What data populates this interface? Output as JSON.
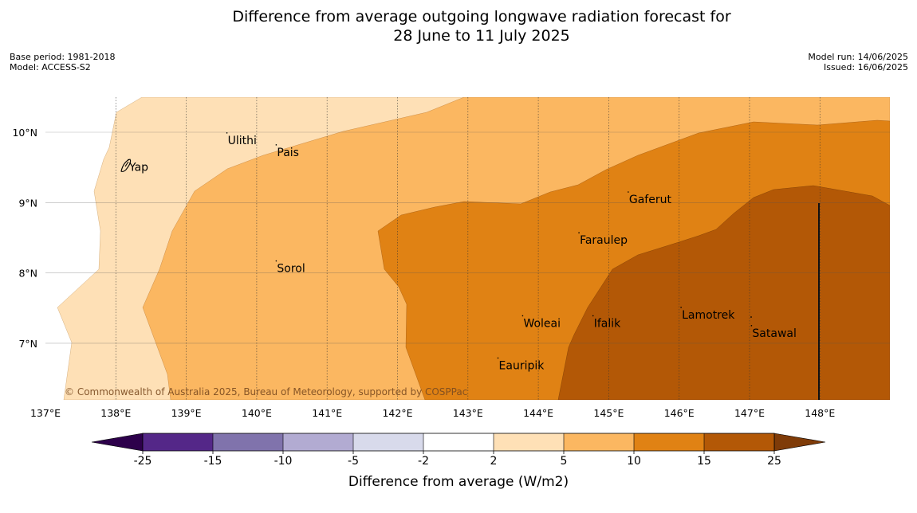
{
  "title_line1": "Difference from average outgoing longwave radiation forecast for",
  "title_line2": "28 June to 11 July 2025",
  "base_period": "Base period: 1981-2018",
  "model": "Model: ACCESS-S2",
  "model_run": "Model run: 14/06/2025",
  "issued": "Issued: 16/06/2025",
  "copyright": "© Commonwealth of Australia 2025, Bureau of Meteorology, supported by COSPPac",
  "lat_ticks": [
    {
      "lat": 10,
      "label": "10°N"
    },
    {
      "lat": 9,
      "label": "9°N"
    },
    {
      "lat": 8,
      "label": "8°N"
    },
    {
      "lat": 7,
      "label": "7°N"
    }
  ],
  "lon_ticks": [
    {
      "lon": 137,
      "label": "137°E"
    },
    {
      "lon": 138,
      "label": "138°E"
    },
    {
      "lon": 139,
      "label": "139°E"
    },
    {
      "lon": 140,
      "label": "140°E"
    },
    {
      "lon": 141,
      "label": "141°E"
    },
    {
      "lon": 142,
      "label": "142°E"
    },
    {
      "lon": 143,
      "label": "143°E"
    },
    {
      "lon": 144,
      "label": "144°E"
    },
    {
      "lon": 145,
      "label": "145°E"
    },
    {
      "lon": 146,
      "label": "146°E"
    },
    {
      "lon": 147,
      "label": "147°E"
    },
    {
      "lon": 148,
      "label": "148°E"
    }
  ],
  "places": [
    {
      "name": "Yap",
      "lon": 138.2,
      "lat": 9.52
    },
    {
      "name": "Ulithi",
      "lon": 139.6,
      "lat": 9.9
    },
    {
      "name": "Pais",
      "lon": 140.3,
      "lat": 9.73
    },
    {
      "name": "Gaferut",
      "lon": 145.3,
      "lat": 9.06
    },
    {
      "name": "Faraulep",
      "lon": 144.6,
      "lat": 8.48
    },
    {
      "name": "Sorol",
      "lon": 140.3,
      "lat": 8.08
    },
    {
      "name": "Woleai",
      "lon": 143.8,
      "lat": 7.3
    },
    {
      "name": "Ifalik",
      "lon": 144.8,
      "lat": 7.3
    },
    {
      "name": "Lamotrek",
      "lon": 146.05,
      "lat": 7.42
    },
    {
      "name": "Satawal",
      "lon": 147.05,
      "lat": 7.16
    },
    {
      "name": "Eauripik",
      "lon": 143.45,
      "lat": 6.7
    }
  ],
  "colorbar": {
    "label": "Difference from average (W/m2)",
    "boundaries": [
      "-25",
      "-15",
      "-10",
      "-5",
      "-2",
      "2",
      "5",
      "10",
      "15",
      "25"
    ],
    "colors": [
      "#542788",
      "#8073ac",
      "#b2abd2",
      "#d8daeb",
      "#ffffff",
      "#fee0b6",
      "#fbb761",
      "#e08214",
      "#b35806"
    ],
    "under_color": "#2d004b",
    "over_color": "#7f3b08"
  },
  "field_colors": {
    "band_2_5": "#fee0b6",
    "band_5_10": "#fbb761",
    "band_10_15": "#e08214",
    "band_15_25": "#b35806"
  }
}
